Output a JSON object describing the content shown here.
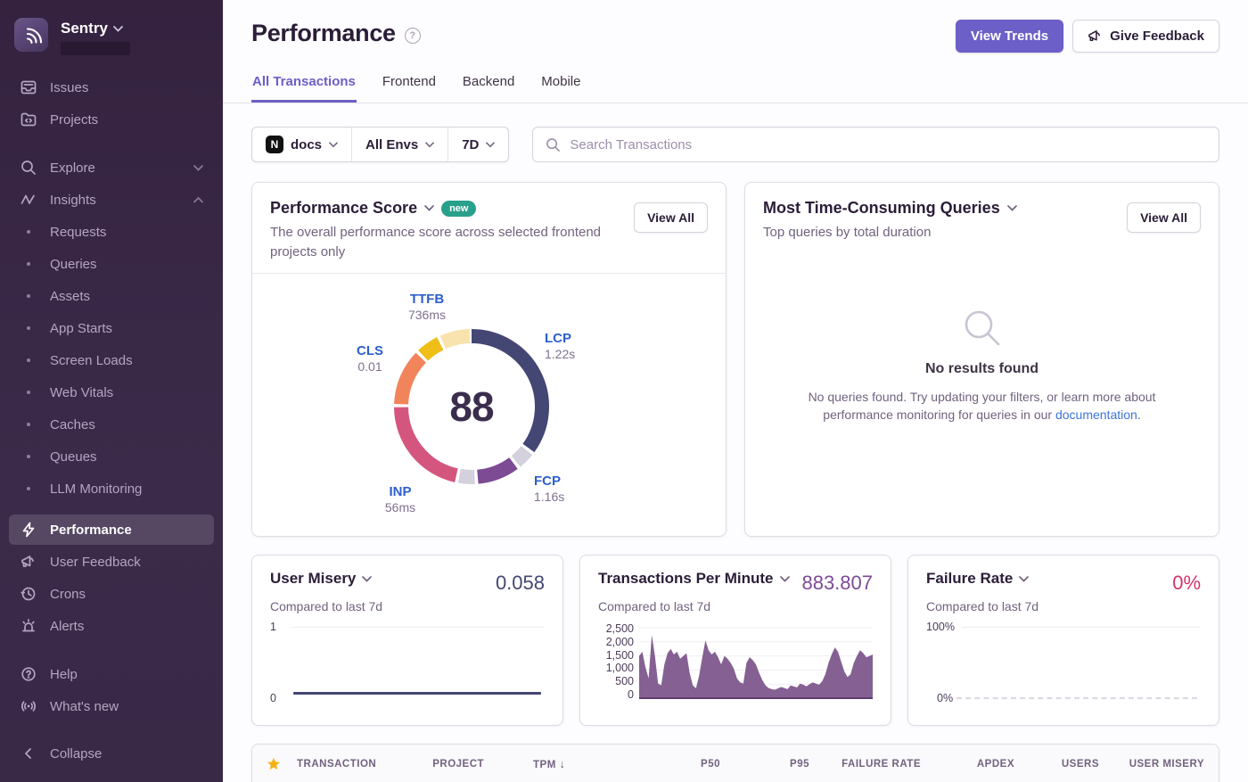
{
  "colors": {
    "accent_purple": "#6C5FC7",
    "sidebar_bg": "#3A2847",
    "badge_new_bg": "#28A08C",
    "star_gold": "#F5B216",
    "link_blue": "#3C74DB",
    "user_misery_value": "#444674",
    "tpm_value": "#7D4A94",
    "failure_rate_value": "#D6336C",
    "tpm_area_fill": "#7B5289"
  },
  "sidebar": {
    "org_name": "Sentry",
    "items": [
      {
        "label": "Issues"
      },
      {
        "label": "Projects"
      },
      {
        "label": "Explore"
      },
      {
        "label": "Insights"
      }
    ],
    "insights_children": [
      "Requests",
      "Queries",
      "Assets",
      "App Starts",
      "Screen Loads",
      "Web Vitals",
      "Caches",
      "Queues",
      "LLM Monitoring"
    ],
    "tools": [
      "Performance",
      "User Feedback",
      "Crons",
      "Alerts"
    ],
    "support": [
      "Help",
      "What's new"
    ],
    "collapse_label": "Collapse"
  },
  "header": {
    "title": "Performance",
    "view_trends_label": "View Trends",
    "give_feedback_label": "Give Feedback"
  },
  "tabs": [
    {
      "label": "All Transactions",
      "active": true
    },
    {
      "label": "Frontend",
      "active": false
    },
    {
      "label": "Backend",
      "active": false
    },
    {
      "label": "Mobile",
      "active": false
    }
  ],
  "filters": {
    "project": "docs",
    "environment": "All Envs",
    "date_range": "7D",
    "search_placeholder": "Search Transactions"
  },
  "cards": {
    "performance_score": {
      "title": "Performance Score",
      "badge": "new",
      "description": "The overall performance score across selected frontend projects only",
      "view_all_label": "View All",
      "score": "88"
    },
    "queries": {
      "title": "Most Time-Consuming Queries",
      "subtitle": "Top queries by total duration",
      "view_all_label": "View All",
      "empty_title": "No results found",
      "empty_text_1": "No queries found. Try updating your filters, or learn more about performance monitoring for queries in our ",
      "empty_link": "documentation",
      "empty_text_2": "."
    },
    "user_misery": {
      "title": "User Misery",
      "subtitle": "Compared to last 7d",
      "value": "0.058",
      "y_max": "1",
      "y_min": "0"
    },
    "tpm": {
      "title": "Transactions Per Minute",
      "subtitle": "Compared to last 7d",
      "value": "883.807"
    },
    "failure_rate": {
      "title": "Failure Rate",
      "subtitle": "Compared to last 7d",
      "value": "0%",
      "y_max": "100%",
      "y_min": "0%"
    }
  },
  "table": {
    "columns": [
      "TRANSACTION",
      "PROJECT",
      "TPM",
      "P50",
      "P95",
      "FAILURE RATE",
      "APDEX",
      "USERS",
      "USER MISERY"
    ],
    "sorted_column": "TPM",
    "sort_direction": "desc"
  },
  "chart_data": [
    {
      "type": "donut",
      "title": "Performance Score",
      "score": 88,
      "segments": [
        {
          "name": "LCP",
          "value": "1.22s",
          "color": "#444674",
          "start": 0,
          "sweep": 126
        },
        {
          "name": "spacer-1",
          "value": "",
          "color": "#D4D0DD",
          "start": 128.5,
          "sweep": 12.5
        },
        {
          "name": "FCP",
          "value": "1.16s",
          "color": "#7D4A94",
          "start": 143.5,
          "sweep": 31.5
        },
        {
          "name": "spacer-2",
          "value": "",
          "color": "#D4D0DD",
          "start": 177.5,
          "sweep": 12.5
        },
        {
          "name": "INP",
          "value": "56ms",
          "color": "#D4567E",
          "start": 192.5,
          "sweep": 77
        },
        {
          "name": "CLS",
          "value": "0.01",
          "color": "#F2845C",
          "start": 272,
          "sweep": 42
        },
        {
          "name": "TTFB",
          "value": "736ms",
          "color": "#EFBE17",
          "start": 316.5,
          "sweep": 17
        },
        {
          "name": "TTFB-remainder",
          "value": "",
          "color": "#F8E3AE",
          "start": 336,
          "sweep": 22.5
        }
      ]
    },
    {
      "type": "area",
      "title": "Transactions Per Minute",
      "current_value": 883.807,
      "ylim": [
        0,
        2500
      ],
      "y_ticks": [
        "2,500",
        "2,000",
        "1,500",
        "1,000",
        "500",
        "0"
      ],
      "values": [
        1500,
        1650,
        1100,
        700,
        2250,
        1500,
        520,
        460,
        1200,
        1600,
        1750,
        1550,
        1650,
        1400,
        1500,
        1600,
        900,
        460,
        350,
        800,
        1450,
        2050,
        1700,
        1550,
        1650,
        1450,
        1200,
        1500,
        1400,
        1250,
        1050,
        700,
        560,
        520,
        1250,
        1450,
        1350,
        1200,
        900,
        650,
        460,
        360,
        320,
        300,
        350,
        400,
        360,
        320,
        450,
        420,
        380,
        520,
        480,
        420,
        500,
        560,
        520,
        480,
        600,
        850,
        1250,
        1550,
        1800,
        1650,
        1300,
        950,
        750,
        850,
        1250,
        1500,
        1700,
        1600,
        1450,
        1500,
        1550
      ]
    },
    {
      "type": "line",
      "title": "User Misery",
      "ylim": [
        0,
        1
      ],
      "constant_value": 0.058
    },
    {
      "type": "line",
      "title": "Failure Rate",
      "ylim": [
        0,
        100
      ],
      "constant_value": 0
    }
  ]
}
